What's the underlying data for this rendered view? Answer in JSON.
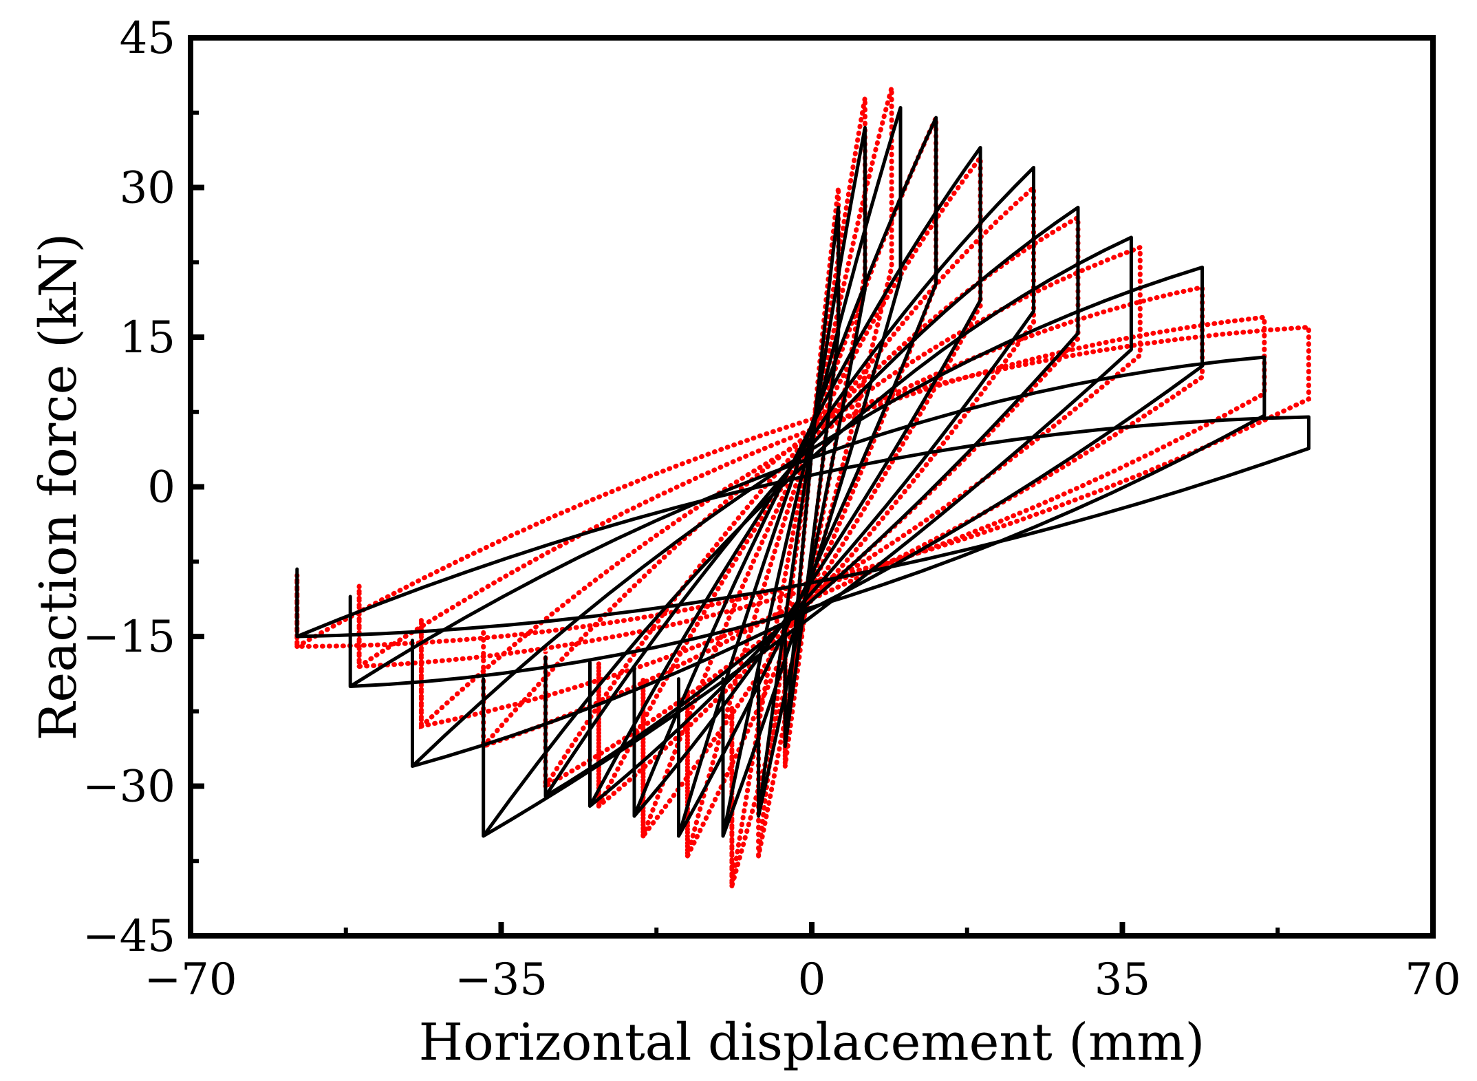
{
  "chart_data": {
    "type": "line",
    "title": "",
    "xlabel": "Horizontal displacement (mm)",
    "ylabel": "Reaction force (kN)",
    "xlim": [
      -70,
      70
    ],
    "ylim": [
      -45,
      45
    ],
    "xticks": [
      -70,
      -35,
      0,
      35,
      70
    ],
    "xtick_labels": [
      "−70",
      "−35",
      "0",
      "35",
      "70"
    ],
    "yticks": [
      -45,
      -30,
      -15,
      0,
      15,
      30,
      45
    ],
    "ytick_labels": [
      "−45",
      "−30",
      "−15",
      "0",
      "15",
      "30",
      "45"
    ],
    "grid": false,
    "legend": null,
    "series": [
      {
        "name": "red dotted",
        "color": "#ff0000",
        "style": "dotted",
        "cycles": [
          {
            "dpos": 3,
            "fpos": 30,
            "dneg": -3,
            "fneg": -28,
            "resP": 7,
            "resN": -8
          },
          {
            "dpos": 6,
            "fpos": 39,
            "dneg": -6,
            "fneg": -37,
            "resP": 9,
            "resN": -10
          },
          {
            "dpos": 9,
            "fpos": 40,
            "dneg": -9,
            "fneg": -40,
            "resP": 10,
            "resN": -11
          },
          {
            "dpos": 14,
            "fpos": 37,
            "dneg": -14,
            "fneg": -37,
            "resP": 10,
            "resN": -12
          },
          {
            "dpos": 19,
            "fpos": 33,
            "dneg": -19,
            "fneg": -35,
            "resP": 11,
            "resN": -13
          },
          {
            "dpos": 25,
            "fpos": 30,
            "dneg": -24,
            "fneg": -32,
            "resP": 11,
            "resN": -14
          },
          {
            "dpos": 30,
            "fpos": 27,
            "dneg": -30,
            "fneg": -30,
            "resP": 12,
            "resN": -15
          },
          {
            "dpos": 37,
            "fpos": 24,
            "dneg": -37,
            "fneg": -26,
            "resP": 12,
            "resN": -15
          },
          {
            "dpos": 44,
            "fpos": 20,
            "dneg": -44,
            "fneg": -24,
            "resP": 12,
            "resN": -16
          },
          {
            "dpos": 51,
            "fpos": 17,
            "dneg": -51,
            "fneg": -18,
            "resP": 12,
            "resN": -16
          },
          {
            "dpos": 56,
            "fpos": 16,
            "dneg": -58,
            "fneg": -16,
            "resP": 13,
            "resN": -16
          }
        ]
      },
      {
        "name": "black solid",
        "color": "#000000",
        "style": "solid",
        "cycles": [
          {
            "dpos": 3,
            "fpos": 28,
            "dneg": -3,
            "fneg": -26,
            "resP": 6,
            "resN": -7
          },
          {
            "dpos": 6,
            "fpos": 36,
            "dneg": -6,
            "fneg": -33,
            "resP": 8,
            "resN": -9
          },
          {
            "dpos": 10,
            "fpos": 38,
            "dneg": -10,
            "fneg": -35,
            "resP": 9,
            "resN": -11
          },
          {
            "dpos": 14,
            "fpos": 37,
            "dneg": -15,
            "fneg": -35,
            "resP": 9,
            "resN": -12
          },
          {
            "dpos": 19,
            "fpos": 34,
            "dneg": -20,
            "fneg": -33,
            "resP": 10,
            "resN": -13
          },
          {
            "dpos": 25,
            "fpos": 32,
            "dneg": -25,
            "fneg": -32,
            "resP": 10,
            "resN": -14
          },
          {
            "dpos": 30,
            "fpos": 28,
            "dneg": -30,
            "fneg": -31,
            "resP": 10,
            "resN": -15
          },
          {
            "dpos": 36,
            "fpos": 25,
            "dneg": -37,
            "fneg": -35,
            "resP": 10,
            "resN": -16
          },
          {
            "dpos": 44,
            "fpos": 22,
            "dneg": -45,
            "fneg": -28,
            "resP": 10,
            "resN": -17
          },
          {
            "dpos": 51,
            "fpos": 13,
            "dneg": -52,
            "fneg": -20,
            "resP": 9,
            "resN": -18
          },
          {
            "dpos": 56,
            "fpos": 7,
            "dneg": -58,
            "fneg": -15,
            "resP": 6,
            "resN": -14
          }
        ]
      }
    ]
  }
}
